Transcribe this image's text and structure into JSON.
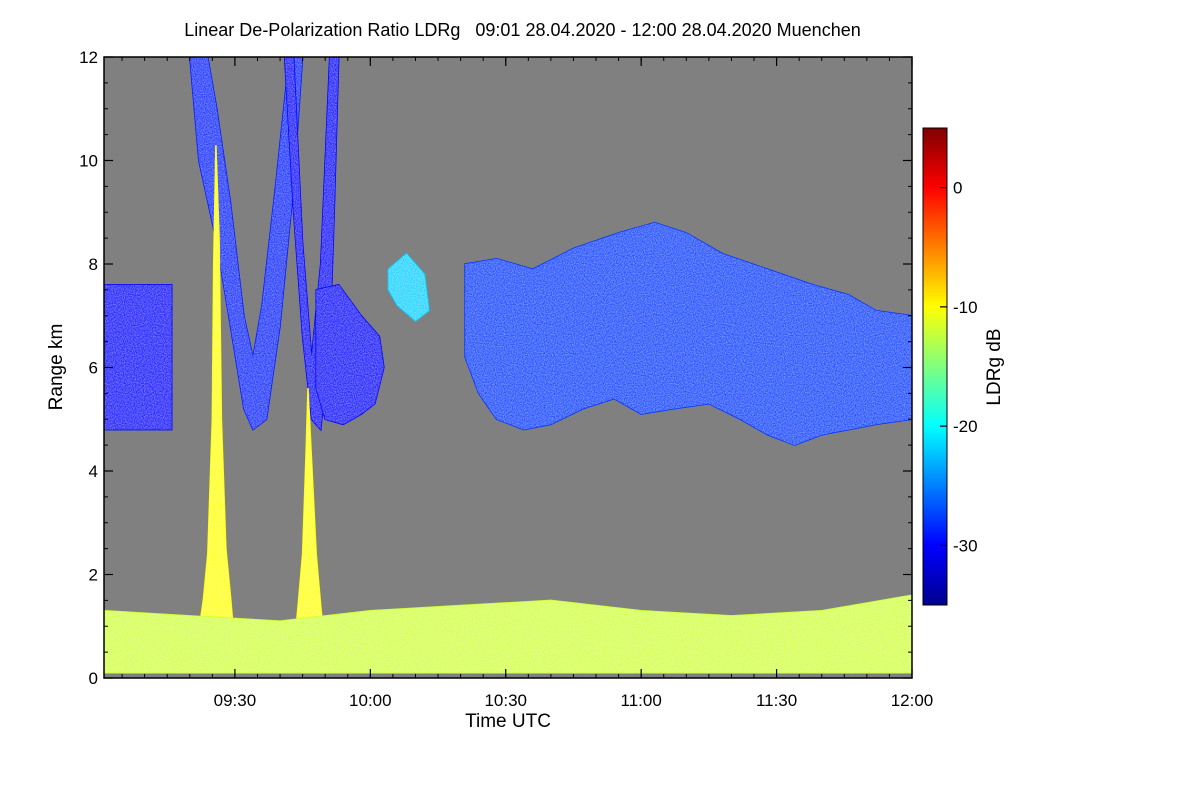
{
  "chart_data": {
    "type": "heatmap",
    "title": "Linear De-Polarization Ratio LDRg   09:01 28.04.2020 - 12:00 28.04.2020 Muenchen",
    "xlabel": "Time UTC",
    "ylabel": "Range km",
    "x_range_minutes_utc": [
      541,
      720
    ],
    "x_ticks": [
      {
        "minute": 570,
        "label": "09:30"
      },
      {
        "minute": 600,
        "label": "10:00"
      },
      {
        "minute": 630,
        "label": "10:30"
      },
      {
        "minute": 660,
        "label": "11:00"
      },
      {
        "minute": 690,
        "label": "11:30"
      },
      {
        "minute": 720,
        "label": "12:00"
      }
    ],
    "ylim": [
      0,
      12
    ],
    "y_ticks": [
      0,
      2,
      4,
      6,
      8,
      10,
      12
    ],
    "background_color": "#808080",
    "colorbar": {
      "label": "LDRg dB",
      "range": [
        -35,
        5
      ],
      "ticks": [
        0,
        -10,
        -20,
        -30
      ],
      "colormap": "jet"
    },
    "features": [
      {
        "kind": "cirrus-band",
        "ldr": -30,
        "tmin": 541,
        "tmax": 556,
        "outline": [
          [
            541,
            4.8
          ],
          [
            556,
            4.8
          ],
          [
            556,
            7.6
          ],
          [
            541,
            7.6
          ]
        ]
      },
      {
        "kind": "fall-streak-arc",
        "ldr": -29,
        "tmin": 560,
        "tmax": 585,
        "outline": [
          [
            560,
            12
          ],
          [
            562,
            10
          ],
          [
            566,
            8.4
          ],
          [
            569,
            6.8
          ],
          [
            572,
            5.2
          ],
          [
            574,
            4.8
          ],
          [
            577,
            5.0
          ],
          [
            580,
            6.8
          ],
          [
            583,
            9.5
          ],
          [
            585,
            12
          ],
          [
            582,
            12
          ],
          [
            579,
            9.5
          ],
          [
            576,
            7.2
          ],
          [
            574,
            6.2
          ],
          [
            572,
            7.0
          ],
          [
            569,
            9.2
          ],
          [
            566,
            11
          ],
          [
            564,
            12
          ]
        ]
      },
      {
        "kind": "fall-streak-arc",
        "ldr": -30,
        "tmin": 581,
        "tmax": 593,
        "outline": [
          [
            581,
            12
          ],
          [
            583,
            9.0
          ],
          [
            585,
            6.6
          ],
          [
            587,
            5.0
          ],
          [
            589,
            4.8
          ],
          [
            591,
            6.4
          ],
          [
            592,
            9.0
          ],
          [
            593,
            12
          ],
          [
            591,
            12
          ],
          [
            589,
            8.0
          ],
          [
            587,
            6.2
          ],
          [
            585,
            8.4
          ],
          [
            583,
            12
          ]
        ]
      },
      {
        "kind": "cirrus-patch",
        "ldr": -30,
        "tmin": 588,
        "tmax": 603,
        "outline": [
          [
            588,
            7.5
          ],
          [
            593,
            7.6
          ],
          [
            598,
            7.0
          ],
          [
            602,
            6.6
          ],
          [
            603,
            6.0
          ],
          [
            601,
            5.3
          ],
          [
            598,
            5.1
          ],
          [
            594,
            4.9
          ],
          [
            590,
            5.0
          ],
          [
            588,
            5.6
          ]
        ]
      },
      {
        "kind": "thin-cirrus-patch",
        "ldr": -22,
        "tmin": 604,
        "tmax": 613,
        "outline": [
          [
            604,
            7.9
          ],
          [
            608,
            8.2
          ],
          [
            612,
            7.8
          ],
          [
            613,
            7.1
          ],
          [
            610,
            6.9
          ],
          [
            606,
            7.2
          ],
          [
            604,
            7.5
          ]
        ]
      },
      {
        "kind": "cirrus-deck",
        "ldr": -28,
        "tmin": 621,
        "tmax": 720,
        "outline": [
          [
            621,
            8.0
          ],
          [
            628,
            8.1
          ],
          [
            636,
            7.9
          ],
          [
            645,
            8.3
          ],
          [
            655,
            8.6
          ],
          [
            663,
            8.8
          ],
          [
            670,
            8.6
          ],
          [
            678,
            8.2
          ],
          [
            688,
            7.9
          ],
          [
            698,
            7.6
          ],
          [
            706,
            7.4
          ],
          [
            712,
            7.1
          ],
          [
            720,
            7.0
          ],
          [
            720,
            5.0
          ],
          [
            712,
            4.9
          ],
          [
            706,
            4.8
          ],
          [
            700,
            4.7
          ],
          [
            694,
            4.5
          ],
          [
            688,
            4.7
          ],
          [
            682,
            5.0
          ],
          [
            675,
            5.3
          ],
          [
            667,
            5.2
          ],
          [
            660,
            5.1
          ],
          [
            654,
            5.4
          ],
          [
            647,
            5.2
          ],
          [
            640,
            4.9
          ],
          [
            634,
            4.8
          ],
          [
            628,
            5.0
          ],
          [
            624,
            5.5
          ],
          [
            621,
            6.2
          ]
        ]
      },
      {
        "kind": "precipitation-column",
        "ldr": -10,
        "tmin": 561,
        "tmax": 570,
        "outline": [
          [
            561,
            0.3
          ],
          [
            562,
            0.9
          ],
          [
            563,
            1.5
          ],
          [
            564,
            2.4
          ],
          [
            565,
            5.0
          ],
          [
            565.3,
            8.0
          ],
          [
            565.8,
            10.3
          ],
          [
            566.5,
            8.5
          ],
          [
            567,
            5.0
          ],
          [
            568,
            2.5
          ],
          [
            569,
            1.6
          ],
          [
            570,
            0.6
          ],
          [
            570,
            0.3
          ]
        ]
      },
      {
        "kind": "precipitation-column",
        "ldr": -10,
        "tmin": 583,
        "tmax": 590,
        "outline": [
          [
            583,
            0.5
          ],
          [
            584,
            1.4
          ],
          [
            585,
            2.4
          ],
          [
            585.7,
            4.2
          ],
          [
            586.2,
            5.6
          ],
          [
            587,
            4.2
          ],
          [
            588,
            2.4
          ],
          [
            589,
            1.4
          ],
          [
            590,
            0.5
          ]
        ]
      },
      {
        "kind": "boundary-layer",
        "ldr": -12,
        "tmin": 541,
        "tmax": 720,
        "outline": [
          [
            541,
            0.1
          ],
          [
            541,
            1.3
          ],
          [
            560,
            1.2
          ],
          [
            580,
            1.1
          ],
          [
            600,
            1.3
          ],
          [
            620,
            1.4
          ],
          [
            640,
            1.5
          ],
          [
            660,
            1.3
          ],
          [
            680,
            1.2
          ],
          [
            700,
            1.3
          ],
          [
            720,
            1.6
          ],
          [
            720,
            0.1
          ]
        ]
      }
    ]
  }
}
